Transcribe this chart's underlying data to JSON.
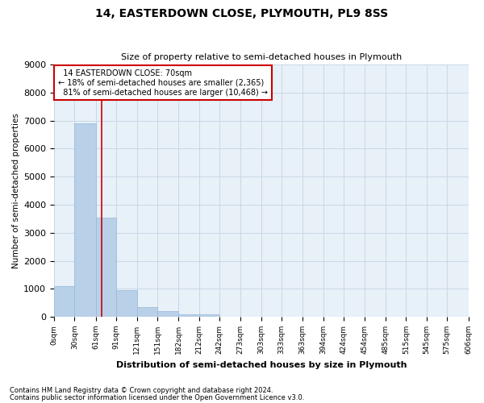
{
  "title1": "14, EASTERDOWN CLOSE, PLYMOUTH, PL9 8SS",
  "title2": "Size of property relative to semi-detached houses in Plymouth",
  "xlabel": "Distribution of semi-detached houses by size in Plymouth",
  "ylabel": "Number of semi-detached properties",
  "property_label": "14 EASTERDOWN CLOSE: 70sqm",
  "pct_smaller": 18,
  "pct_larger": 81,
  "n_smaller": 2365,
  "n_larger": 10468,
  "bin_edges": [
    0,
    30,
    61,
    91,
    121,
    151,
    182,
    212,
    242,
    273,
    303,
    333,
    363,
    394,
    424,
    454,
    485,
    515,
    545,
    575,
    606
  ],
  "bin_labels": [
    "0sqm",
    "30sqm",
    "61sqm",
    "91sqm",
    "121sqm",
    "151sqm",
    "182sqm",
    "212sqm",
    "242sqm",
    "273sqm",
    "303sqm",
    "333sqm",
    "363sqm",
    "394sqm",
    "424sqm",
    "454sqm",
    "485sqm",
    "515sqm",
    "545sqm",
    "575sqm",
    "606sqm"
  ],
  "bar_heights": [
    1100,
    6900,
    3550,
    950,
    350,
    200,
    100,
    90,
    0,
    0,
    0,
    0,
    0,
    0,
    0,
    0,
    0,
    0,
    0,
    0
  ],
  "bar_color": "#b8d0e8",
  "bar_edge_color": "#9ab8d8",
  "vline_color": "#cc0000",
  "vline_x": 70,
  "ylim": [
    0,
    9000
  ],
  "yticks": [
    0,
    1000,
    2000,
    3000,
    4000,
    5000,
    6000,
    7000,
    8000,
    9000
  ],
  "grid_color": "#c8d8e8",
  "bg_color": "#e8f0f8",
  "box_edge_color": "#cc0000",
  "footnote1": "Contains HM Land Registry data © Crown copyright and database right 2024.",
  "footnote2": "Contains public sector information licensed under the Open Government Licence v3.0."
}
